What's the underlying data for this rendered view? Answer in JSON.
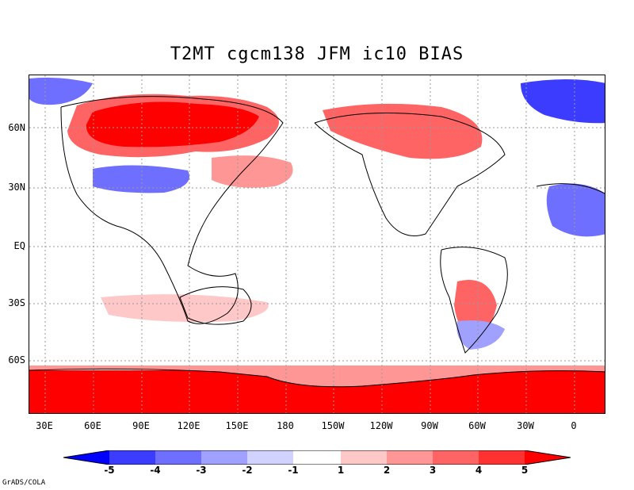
{
  "title": "T2MT cgcm138 JFM ic10 BIAS",
  "latitude_labels": [
    "60N",
    "30N",
    "EQ",
    "30S",
    "60S"
  ],
  "longitude_labels": [
    "30E",
    "60E",
    "90E",
    "120E",
    "150E",
    "180",
    "150W",
    "120W",
    "90W",
    "60W",
    "30W",
    "0"
  ],
  "colorbar": {
    "labels": [
      "-5",
      "-4",
      "-3",
      "-2",
      "-1",
      "1",
      "2",
      "3",
      "4",
      "5"
    ],
    "colors": [
      "#0000ff",
      "#3c3cff",
      "#6e6eff",
      "#a0a0ff",
      "#d2d2ff",
      "#ffffff",
      "#ffc8c8",
      "#ff9696",
      "#ff6464",
      "#ff3232",
      "#ff0000"
    ]
  },
  "credit": "GrADS/COLA"
}
